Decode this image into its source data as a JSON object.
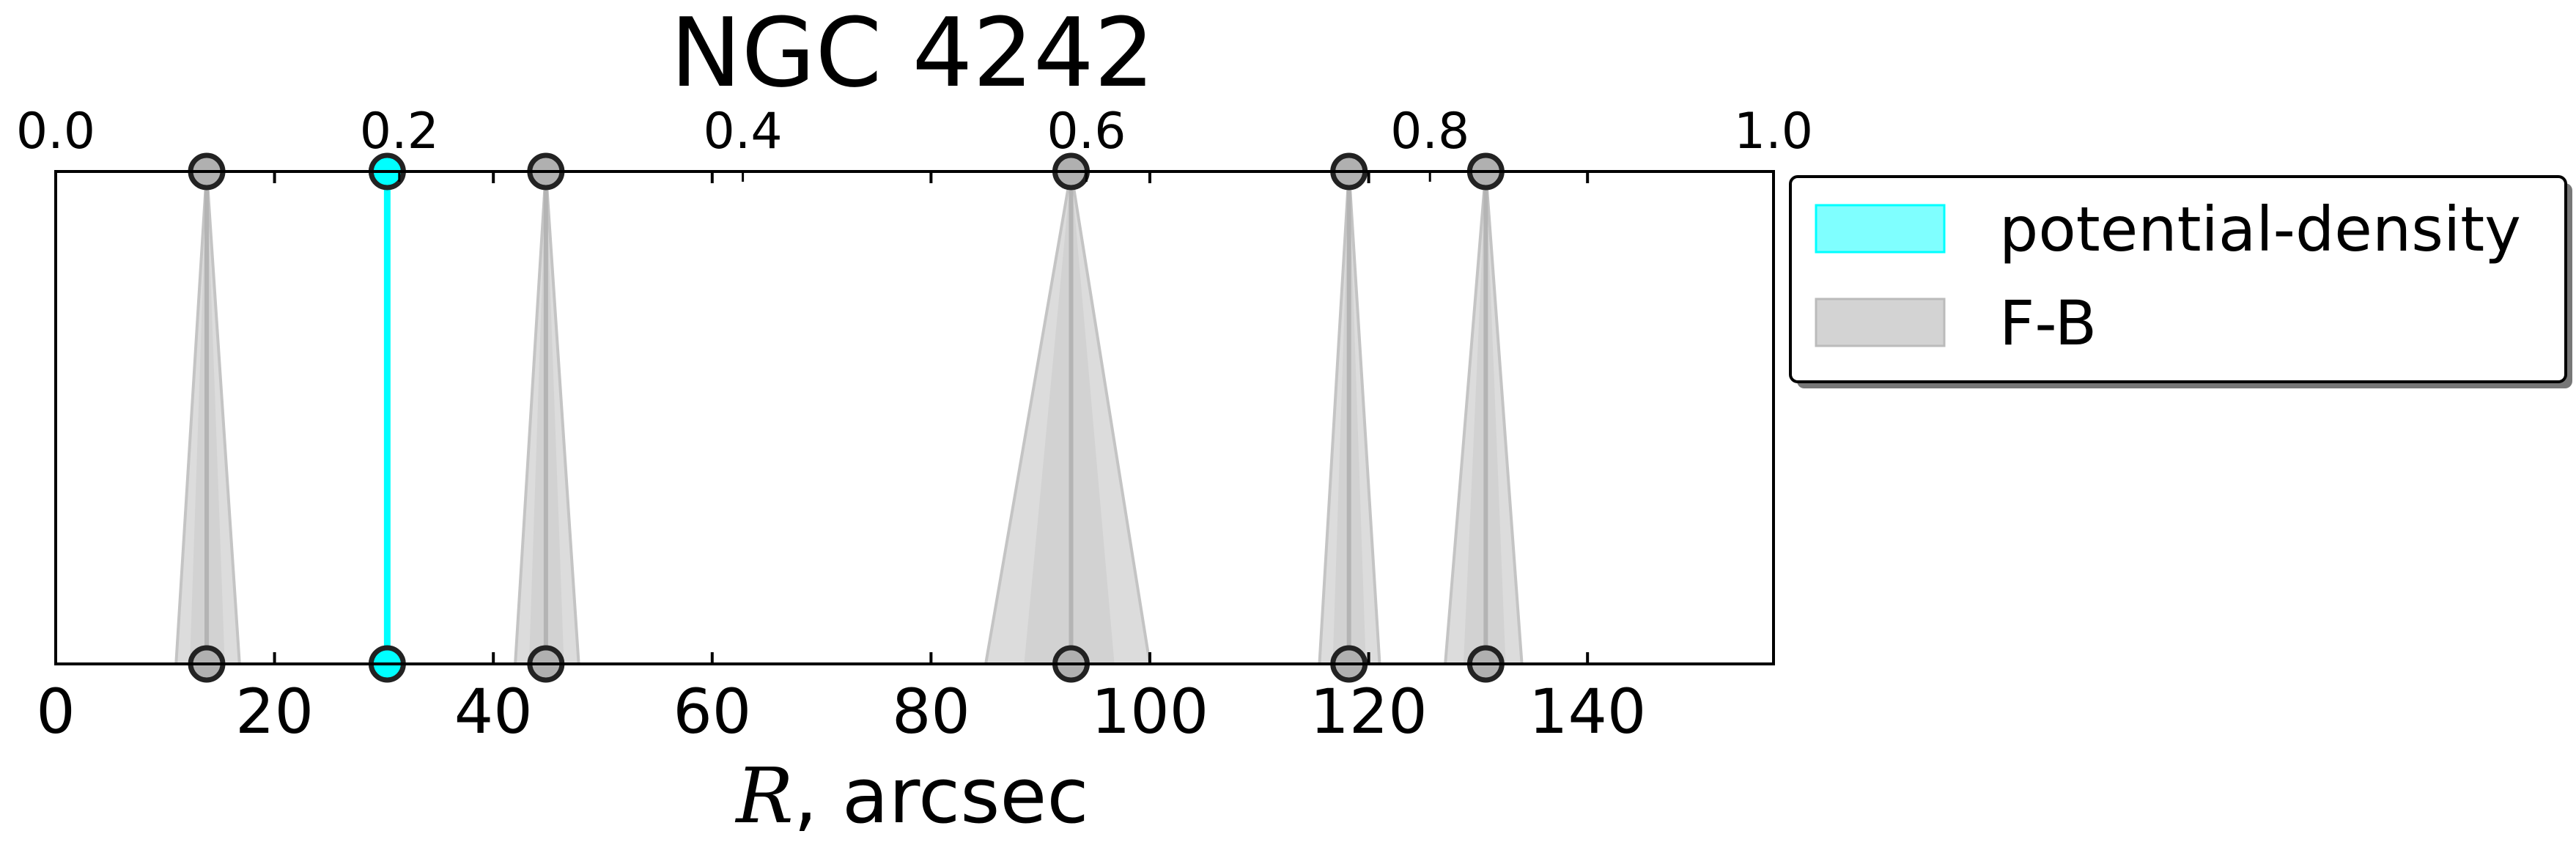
{
  "chart_data": {
    "type": "scatter",
    "title": "NGC 4242",
    "xlabel_var": "R",
    "xlabel_rest": ", arcsec",
    "xlim": [
      0,
      157
    ],
    "xticks": [
      0,
      20,
      40,
      60,
      80,
      100,
      120,
      140
    ],
    "xtick_labels": [
      "0",
      "20",
      "40",
      "60",
      "80",
      "100",
      "120",
      "140"
    ],
    "top_axis": {
      "lim": [
        0.0,
        1.0
      ],
      "ticks": [
        0.0,
        0.2,
        0.4,
        0.6,
        0.8,
        1.0
      ],
      "tick_labels": [
        "0.0",
        "0.2",
        "0.4",
        "0.6",
        "0.8",
        "1.0"
      ]
    },
    "grid": false,
    "legend_position": "outside-right-top",
    "series": [
      {
        "name": "potential-density",
        "color": "#00ffff",
        "points": [
          {
            "x": 30.3,
            "lo": 30.3,
            "hi": 30.3
          }
        ]
      },
      {
        "name": "F-B",
        "color": "#c8c8c8",
        "points": [
          {
            "x": 13.8,
            "lo": 11.0,
            "hi": 16.8
          },
          {
            "x": 44.8,
            "lo": 42.0,
            "hi": 47.8
          },
          {
            "x": 92.8,
            "lo": 85.0,
            "hi": 100.0
          },
          {
            "x": 118.2,
            "lo": 115.5,
            "hi": 121.0
          },
          {
            "x": 130.7,
            "lo": 127.0,
            "hi": 134.0
          }
        ]
      }
    ]
  }
}
